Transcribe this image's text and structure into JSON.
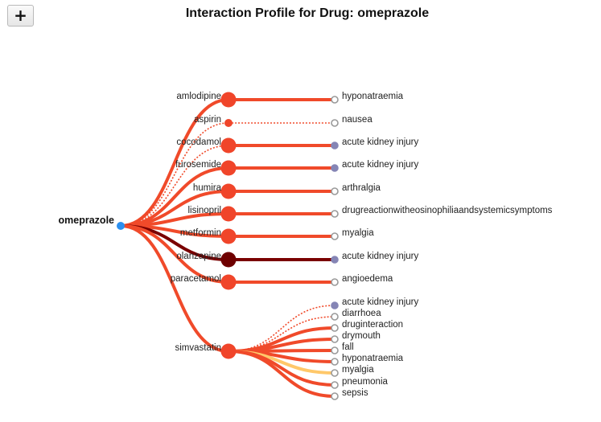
{
  "toolbar": {
    "expand_label": "+"
  },
  "title": "Interaction Profile for Drug: omeprazole",
  "root": {
    "name": "omeprazole",
    "color": "#2c8ff0"
  },
  "colors": {
    "edge_default": "#f04a2a",
    "edge_strong": "#7a0000",
    "edge_weak": "#ffc86a",
    "node_default": "#f0452a",
    "node_strong": "#6e0000",
    "leaf_hollow": "#999999",
    "leaf_filled": "#8585b5"
  },
  "drugs": [
    {
      "name": "amlodipine",
      "node": "default",
      "edge": "default",
      "dashed": false,
      "effects": [
        {
          "name": "hyponatraemia",
          "leaf": "hollow",
          "edge": "default",
          "dashed": false
        }
      ]
    },
    {
      "name": "aspirin",
      "node": "small",
      "edge": "default",
      "dashed": true,
      "effects": [
        {
          "name": "nausea",
          "leaf": "hollow",
          "edge": "default",
          "dashed": true
        }
      ]
    },
    {
      "name": "cocodamol",
      "node": "default",
      "edge": "default",
      "dashed": true,
      "effects": [
        {
          "name": "acute kidney injury",
          "leaf": "filled",
          "edge": "default",
          "dashed": false
        }
      ]
    },
    {
      "name": "furosemide",
      "node": "default",
      "edge": "default",
      "dashed": false,
      "effects": [
        {
          "name": "acute kidney injury",
          "leaf": "filled",
          "edge": "default",
          "dashed": false
        }
      ]
    },
    {
      "name": "humira",
      "node": "default",
      "edge": "default",
      "dashed": false,
      "effects": [
        {
          "name": "arthralgia",
          "leaf": "hollow",
          "edge": "default",
          "dashed": false
        }
      ]
    },
    {
      "name": "lisinopril",
      "node": "default",
      "edge": "default",
      "dashed": false,
      "effects": [
        {
          "name": "drugreactionwitheosinophiliaandsystemicsymptoms",
          "leaf": "hollow",
          "edge": "default",
          "dashed": false
        }
      ]
    },
    {
      "name": "metformin",
      "node": "default",
      "edge": "default",
      "dashed": false,
      "effects": [
        {
          "name": "myalgia",
          "leaf": "hollow",
          "edge": "default",
          "dashed": false
        }
      ]
    },
    {
      "name": "olanzapine",
      "node": "strong",
      "edge": "strong",
      "dashed": false,
      "effects": [
        {
          "name": "acute kidney injury",
          "leaf": "filled",
          "edge": "strong",
          "dashed": false
        }
      ]
    },
    {
      "name": "paracetamol",
      "node": "default",
      "edge": "default",
      "dashed": false,
      "effects": [
        {
          "name": "angioedema",
          "leaf": "hollow",
          "edge": "default",
          "dashed": false
        }
      ]
    },
    {
      "name": "simvastatin",
      "node": "default",
      "edge": "default",
      "dashed": false,
      "effects": [
        {
          "name": "acute kidney injury",
          "leaf": "filled",
          "edge": "default",
          "dashed": true
        },
        {
          "name": "diarrhoea",
          "leaf": "hollow",
          "edge": "default",
          "dashed": true
        },
        {
          "name": "druginteraction",
          "leaf": "hollow",
          "edge": "default",
          "dashed": false
        },
        {
          "name": "drymouth",
          "leaf": "hollow",
          "edge": "default",
          "dashed": false
        },
        {
          "name": "fall",
          "leaf": "hollow",
          "edge": "default",
          "dashed": false
        },
        {
          "name": "hyponatraemia",
          "leaf": "hollow",
          "edge": "default",
          "dashed": false
        },
        {
          "name": "myalgia",
          "leaf": "hollow",
          "edge": "weak",
          "dashed": false
        },
        {
          "name": "pneumonia",
          "leaf": "hollow",
          "edge": "default",
          "dashed": false
        },
        {
          "name": "sepsis",
          "leaf": "hollow",
          "edge": "default",
          "dashed": false
        }
      ]
    }
  ]
}
